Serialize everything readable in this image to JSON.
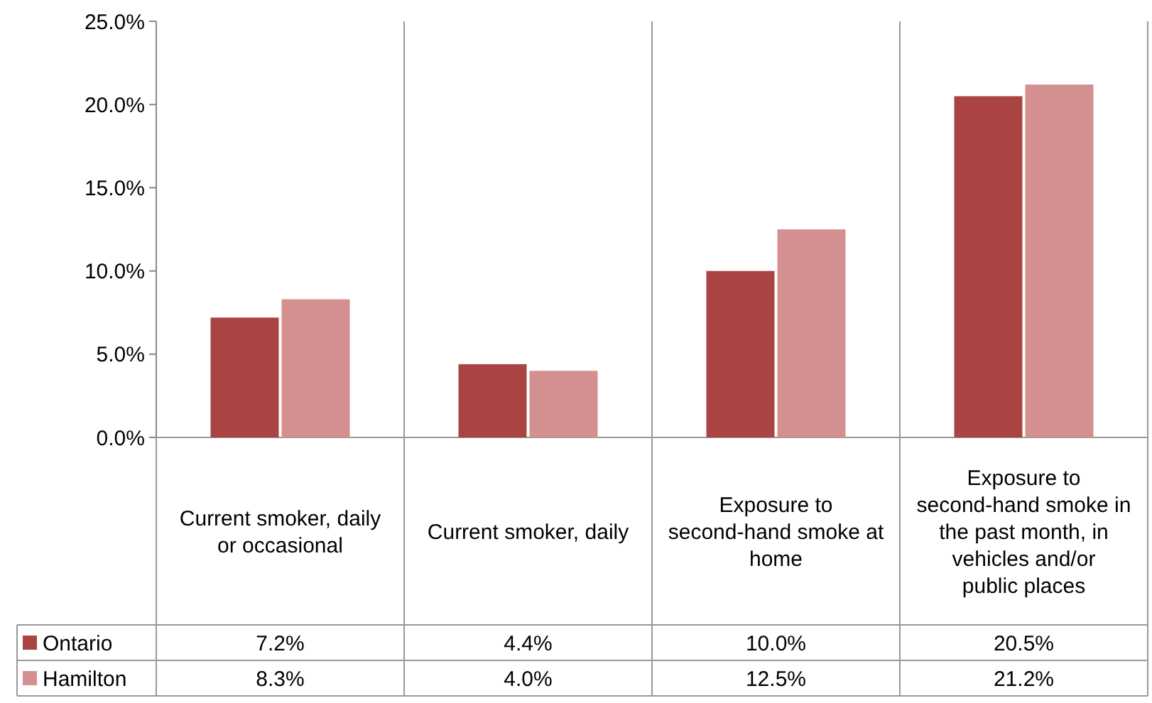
{
  "chart_data": {
    "type": "bar",
    "categories": [
      "Current smoker, daily or occasional",
      "Current smoker, daily",
      "Exposure to second-hand smoke at home",
      "Exposure to second-hand smoke in the past month, in vehicles and/or public places"
    ],
    "series": [
      {
        "name": "Ontario",
        "color": "#a94442",
        "values": [
          7.2,
          4.4,
          10.0,
          20.5
        ],
        "value_labels": [
          "7.2%",
          "4.4%",
          "10.0%",
          "20.5%"
        ]
      },
      {
        "name": "Hamilton",
        "color": "#d49090",
        "values": [
          8.3,
          4.0,
          12.5,
          21.2
        ],
        "value_labels": [
          "8.3%",
          "4.0%",
          "12.5%",
          "21.2%"
        ]
      }
    ],
    "ylim": [
      0,
      25
    ],
    "yticks": [
      {
        "value": 0,
        "label": "0.0%"
      },
      {
        "value": 5,
        "label": "5.0%"
      },
      {
        "value": 10,
        "label": "10.0%"
      },
      {
        "value": 15,
        "label": "15.0%"
      },
      {
        "value": 20,
        "label": "20.0%"
      },
      {
        "value": 25,
        "label": "25.0%"
      }
    ],
    "grid": false,
    "legend": "bottom left"
  }
}
